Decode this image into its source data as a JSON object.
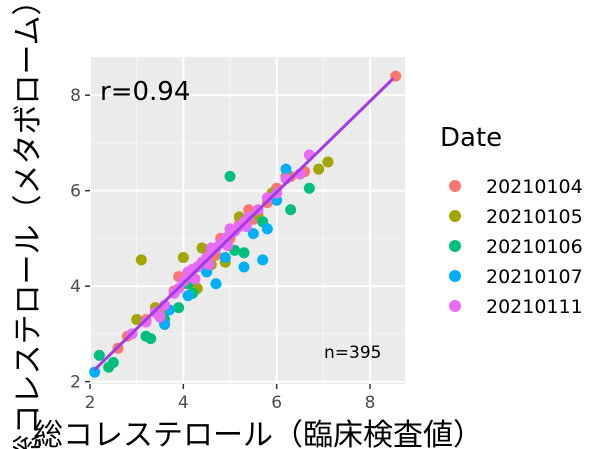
{
  "chart_data": {
    "type": "scatter",
    "title": "",
    "xlabel": "総コレステロール（臨床検査値）",
    "ylabel": "総コレステロール（メタボローム）",
    "xlim": [
      2.0,
      8.75
    ],
    "ylim": [
      1.95,
      8.8
    ],
    "x_ticks": [
      2,
      4,
      6,
      8
    ],
    "y_ticks": [
      2,
      4,
      6,
      8
    ],
    "grid": true,
    "background": "#ebebeb",
    "legend": {
      "title": "Date",
      "position": "right"
    },
    "annotations": {
      "r": "r=0.94",
      "n": "n=395"
    },
    "fit_line": {
      "x": [
        2.1,
        8.5
      ],
      "y": [
        2.25,
        8.35
      ],
      "color": "#a23be6"
    },
    "series": [
      {
        "name": "20210104",
        "color": "#f8766d",
        "x": [
          8.55,
          2.6,
          2.8,
          3.2,
          3.5,
          3.8,
          4.0,
          4.2,
          4.5,
          4.7,
          5.0,
          5.2,
          5.5,
          5.8,
          6.0,
          6.3,
          6.6,
          4.8,
          5.4,
          3.9
        ],
        "y": [
          8.4,
          2.7,
          2.95,
          3.3,
          3.45,
          3.9,
          4.05,
          4.35,
          4.6,
          4.65,
          5.0,
          5.3,
          5.4,
          5.75,
          6.05,
          6.3,
          6.4,
          5.0,
          5.6,
          4.2
        ]
      },
      {
        "name": "20210105",
        "color": "#a3a500",
        "x": [
          3.1,
          3.4,
          3.6,
          4.0,
          4.3,
          4.6,
          4.9,
          5.2,
          5.6,
          6.9,
          7.1,
          3.0,
          5.9,
          6.2,
          4.4
        ],
        "y": [
          4.55,
          3.55,
          3.2,
          4.6,
          3.95,
          4.45,
          4.5,
          5.45,
          5.5,
          6.45,
          6.6,
          3.3,
          5.95,
          6.3,
          4.8
        ]
      },
      {
        "name": "20210106",
        "color": "#00bf7d",
        "x": [
          2.2,
          2.4,
          3.2,
          3.3,
          3.6,
          3.9,
          4.1,
          4.5,
          5.1,
          5.3,
          5.0,
          6.3,
          6.7,
          2.5,
          5.7,
          4.2
        ],
        "y": [
          2.55,
          2.3,
          2.95,
          2.9,
          3.3,
          3.55,
          4.05,
          4.3,
          4.75,
          4.7,
          6.3,
          5.6,
          6.05,
          2.4,
          5.35,
          3.85
        ]
      },
      {
        "name": "20210107",
        "color": "#00b0f6",
        "x": [
          2.1,
          3.6,
          3.7,
          4.1,
          4.5,
          4.9,
          5.3,
          5.5,
          5.8,
          6.0,
          6.2,
          5.7,
          4.7
        ],
        "y": [
          2.2,
          3.2,
          3.5,
          3.8,
          4.3,
          4.6,
          4.4,
          5.1,
          5.2,
          5.8,
          6.45,
          4.55,
          4.05
        ]
      },
      {
        "name": "20210111",
        "color": "#e76bf3",
        "x": [
          2.9,
          3.2,
          3.4,
          3.6,
          3.8,
          3.9,
          4.0,
          4.1,
          4.2,
          4.3,
          4.4,
          4.5,
          4.6,
          4.7,
          4.8,
          4.9,
          5.0,
          5.1,
          5.2,
          5.3,
          5.4,
          5.6,
          5.8,
          6.0,
          6.2,
          6.5,
          6.7,
          3.5,
          4.25,
          4.55,
          4.95,
          5.35,
          4.1,
          4.6,
          5.0
        ],
        "y": [
          3.0,
          3.25,
          3.45,
          3.6,
          3.85,
          3.95,
          4.1,
          4.2,
          4.35,
          4.4,
          4.5,
          4.6,
          4.75,
          4.8,
          4.9,
          5.0,
          5.1,
          5.15,
          5.25,
          5.35,
          5.45,
          5.6,
          5.85,
          5.95,
          6.25,
          6.35,
          6.75,
          3.35,
          4.15,
          4.45,
          4.85,
          5.25,
          4.3,
          4.8,
          5.2
        ]
      }
    ]
  }
}
